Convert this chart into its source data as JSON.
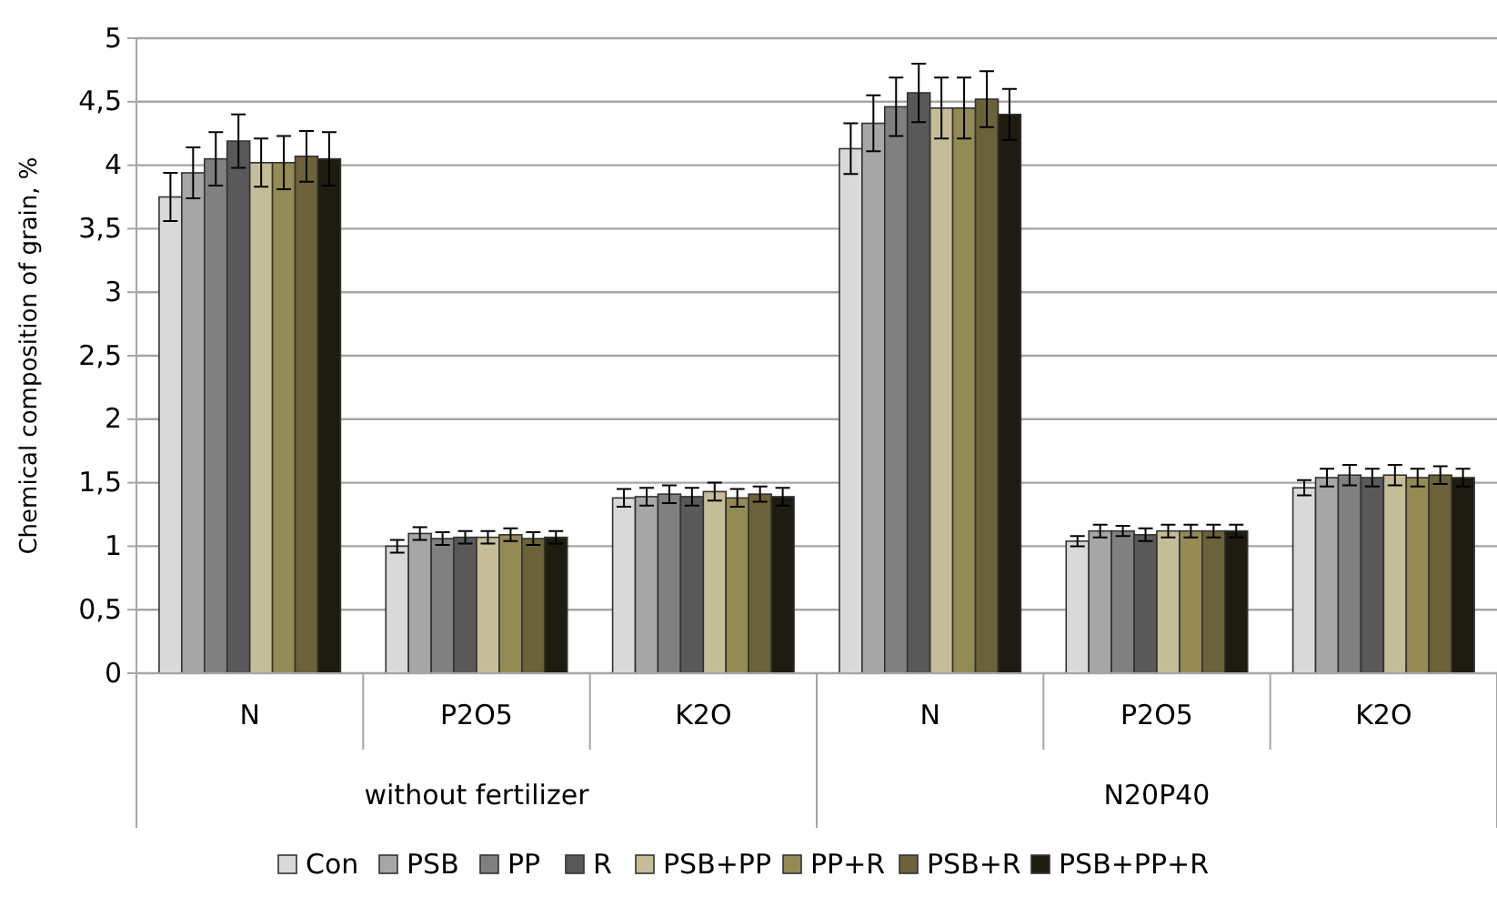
{
  "chart_data": {
    "type": "bar",
    "ylabel": "Chemical composition of grain, %",
    "categories": [
      "N",
      "P2O5",
      "K2O",
      "N",
      "P2O5",
      "K2O"
    ],
    "annotations": [
      "without fertilizer",
      "N20P40"
    ],
    "ylim": [
      0,
      5
    ],
    "yticks": [
      0,
      {
        "value": 0.5,
        "label": "0,5"
      },
      1,
      {
        "value": 1.5,
        "label": "1,5"
      },
      2,
      {
        "value": 2.5,
        "label": "2,5"
      },
      3,
      {
        "value": 3.5,
        "label": "3,5"
      },
      4,
      {
        "value": 4.5,
        "label": "4,5"
      },
      5
    ],
    "grid": "y",
    "legend": "bottom",
    "series": [
      {
        "name": "Con",
        "color": "#d9d9d9",
        "values": [
          3.75,
          1.0,
          1.38,
          4.13,
          1.04,
          1.46
        ],
        "errors": [
          0.19,
          0.05,
          0.07,
          0.2,
          0.04,
          0.06
        ]
      },
      {
        "name": "PSB",
        "color": "#a6a6a6",
        "values": [
          3.94,
          1.1,
          1.39,
          4.33,
          1.12,
          1.54
        ],
        "errors": [
          0.2,
          0.05,
          0.07,
          0.22,
          0.05,
          0.07
        ]
      },
      {
        "name": "PP",
        "color": "#808080",
        "values": [
          4.05,
          1.06,
          1.41,
          4.46,
          1.12,
          1.56
        ],
        "errors": [
          0.21,
          0.05,
          0.07,
          0.23,
          0.04,
          0.08
        ]
      },
      {
        "name": "R",
        "color": "#595959",
        "values": [
          4.19,
          1.07,
          1.39,
          4.57,
          1.09,
          1.54
        ],
        "errors": [
          0.21,
          0.05,
          0.07,
          0.23,
          0.05,
          0.07
        ]
      },
      {
        "name": "PSB+PP",
        "color": "#c4bd97",
        "values": [
          4.02,
          1.07,
          1.43,
          4.45,
          1.12,
          1.56
        ],
        "errors": [
          0.19,
          0.05,
          0.07,
          0.24,
          0.05,
          0.08
        ]
      },
      {
        "name": "PP+R",
        "color": "#948a54",
        "values": [
          4.02,
          1.09,
          1.38,
          4.45,
          1.12,
          1.54
        ],
        "errors": [
          0.21,
          0.05,
          0.07,
          0.24,
          0.05,
          0.07
        ]
      },
      {
        "name": "PSB+R",
        "color": "#6b623a",
        "values": [
          4.07,
          1.06,
          1.41,
          4.52,
          1.12,
          1.56
        ],
        "errors": [
          0.2,
          0.05,
          0.06,
          0.22,
          0.05,
          0.07
        ]
      },
      {
        "name": "PSB+PP+R",
        "color": "#1e1c11",
        "values": [
          4.05,
          1.07,
          1.39,
          4.4,
          1.12,
          1.54
        ],
        "errors": [
          0.21,
          0.05,
          0.07,
          0.2,
          0.05,
          0.07
        ]
      }
    ]
  }
}
